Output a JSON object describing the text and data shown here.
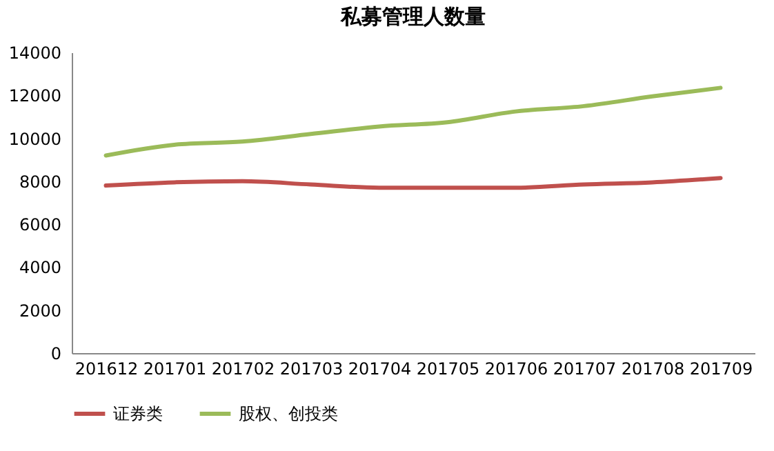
{
  "chart_data": {
    "type": "line",
    "title": "私募管理人数量",
    "categories": [
      "201612",
      "201701",
      "201702",
      "201703",
      "201704",
      "201705",
      "201706",
      "201707",
      "201708",
      "201709"
    ],
    "series": [
      {
        "name": "证券类",
        "color": "#c0504d",
        "values": [
          7800,
          7950,
          8000,
          7850,
          7700,
          7700,
          7700,
          7850,
          7950,
          8150
        ]
      },
      {
        "name": "股权、创投类",
        "color": "#9bbb59",
        "values": [
          9200,
          9700,
          9850,
          10200,
          10550,
          10750,
          11250,
          11500,
          11950,
          12350
        ]
      }
    ],
    "ylim": [
      0,
      14000
    ],
    "yticks": [
      0,
      2000,
      4000,
      6000,
      8000,
      10000,
      12000,
      14000
    ],
    "grid": false,
    "legend": "bottom",
    "marker": "none",
    "line_style": "solid"
  }
}
